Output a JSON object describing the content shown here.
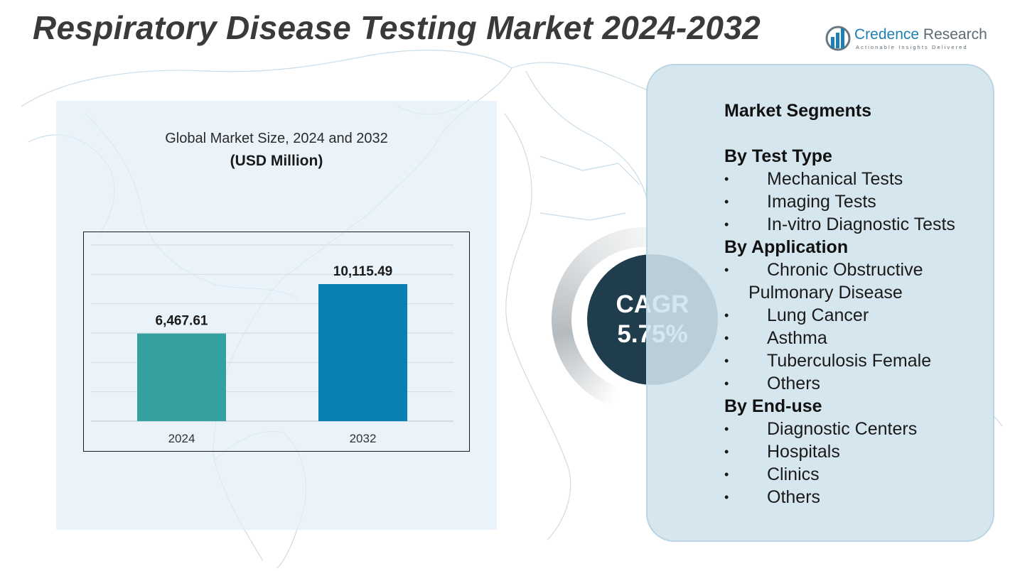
{
  "title": "Respiratory Disease Testing Market 2024-2032",
  "logo": {
    "name_part1": "Credence",
    "name_part2": "Research",
    "tagline": "Actionable Insights Delivered"
  },
  "colors": {
    "bar_2024": "#35a0a0",
    "bar_2032": "#0a7fb1",
    "cagr_bg": "#1f3d4d",
    "panel_bg": "#d0e3ed"
  },
  "chart_data": {
    "type": "bar",
    "title": "Global Market Size, 2024 and 2032",
    "unit": "(USD Million)",
    "categories": [
      "2024",
      "2032"
    ],
    "values": [
      6467.61,
      10115.49
    ],
    "data_labels": [
      "6,467.61",
      "10,115.49"
    ],
    "ylim": [
      0,
      13000
    ],
    "grid": true,
    "legend": "none"
  },
  "cagr": {
    "label": "CAGR",
    "value": "5.75%"
  },
  "segments": {
    "heading": "Market Segments",
    "groups": [
      {
        "title": "By Test Type",
        "items": [
          "Mechanical Tests",
          "Imaging Tests",
          "In-vitro Diagnostic Tests"
        ]
      },
      {
        "title": "By Application",
        "items": [
          "Chronic Obstructive",
          "Pulmonary Disease",
          "Lung Cancer",
          "Asthma",
          "Tuberculosis Female",
          "Others"
        ]
      },
      {
        "title": "By End-use",
        "items": [
          "Diagnostic Centers",
          "Hospitals",
          "Clinics",
          "Others"
        ]
      }
    ]
  }
}
